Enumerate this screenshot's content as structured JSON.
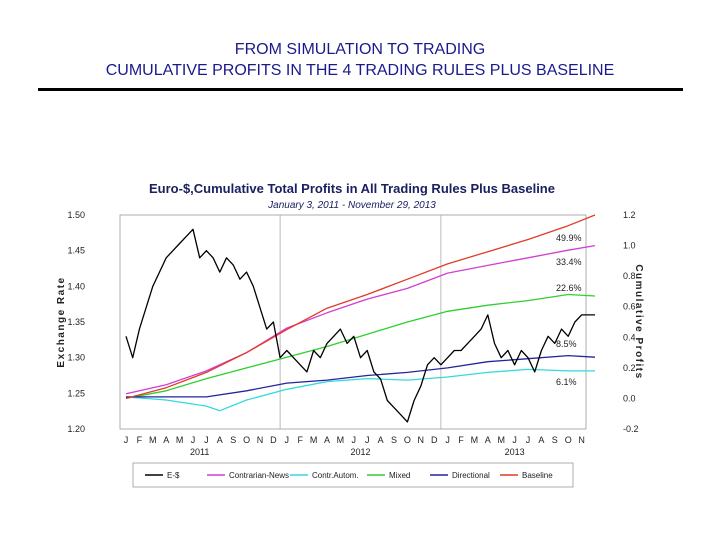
{
  "slide": {
    "title_line1": "FROM SIMULATION TO TRADING",
    "title_line2": "CUMULATIVE PROFITS IN THE 4 TRADING RULES PLUS BASELINE"
  },
  "chart_data": {
    "type": "line",
    "title": "Euro-$,Cumulative Total Profits in All Trading Rules Plus Baseline",
    "subtitle": "January 3, 2011 - November 29, 2013",
    "ylabel_left": "Exchange Rate",
    "ylabel_right": "Cumulative Profits",
    "ylim_left": [
      1.2,
      1.5
    ],
    "ylim_right": [
      -0.2,
      1.2
    ],
    "yticks_left": [
      "1.50",
      "1.45",
      "1.40",
      "1.35",
      "1.30",
      "1.25",
      "1.20"
    ],
    "yticks_right": [
      "1.2",
      "1.0",
      "0.8",
      "0.6",
      "0.4",
      "0.2",
      "0.0",
      "-0.2"
    ],
    "x_month_labels": [
      "J",
      "F",
      "M",
      "A",
      "M",
      "J",
      "J",
      "A",
      "S",
      "O",
      "N",
      "D",
      "J",
      "F",
      "M",
      "A",
      "M",
      "J",
      "J",
      "A",
      "S",
      "O",
      "N",
      "D",
      "J",
      "F",
      "M",
      "A",
      "M",
      "J",
      "J",
      "A",
      "S",
      "O",
      "N"
    ],
    "x_year_labels": [
      "2011",
      "2012",
      "2013"
    ],
    "grid": "vertical lines at year boundaries",
    "legend_position": "bottom",
    "annotations": [
      "49.9%",
      "33.4%",
      "22.6%",
      "8.5%",
      "6.1%"
    ],
    "series": [
      {
        "name": "E-$",
        "axis": "left",
        "color": "#000000",
        "x": [
          0,
          0.5,
          1,
          1.5,
          2,
          2.5,
          3,
          3.5,
          4,
          4.5,
          5,
          5.5,
          6,
          6.5,
          7,
          7.5,
          8,
          8.5,
          9,
          9.5,
          10,
          10.5,
          11,
          11.5,
          12,
          12.5,
          13,
          13.5,
          14,
          14.5,
          15,
          15.5,
          16,
          16.5,
          17,
          17.5,
          18,
          18.5,
          19,
          19.5,
          20,
          20.5,
          21,
          21.5,
          22,
          22.5,
          23,
          23.5,
          24,
          24.5,
          25,
          25.5,
          26,
          26.5,
          27,
          27.5,
          28,
          28.5,
          29,
          29.5,
          30,
          30.5,
          31,
          31.5,
          32,
          32.5,
          33,
          33.5,
          34,
          34.5,
          35
        ],
        "values": [
          1.33,
          1.3,
          1.34,
          1.37,
          1.4,
          1.42,
          1.44,
          1.45,
          1.46,
          1.47,
          1.48,
          1.44,
          1.45,
          1.44,
          1.42,
          1.44,
          1.43,
          1.41,
          1.42,
          1.4,
          1.37,
          1.34,
          1.35,
          1.3,
          1.31,
          1.3,
          1.29,
          1.28,
          1.31,
          1.3,
          1.32,
          1.33,
          1.34,
          1.32,
          1.33,
          1.3,
          1.31,
          1.28,
          1.27,
          1.24,
          1.23,
          1.22,
          1.21,
          1.24,
          1.26,
          1.29,
          1.3,
          1.29,
          1.3,
          1.31,
          1.31,
          1.32,
          1.33,
          1.34,
          1.36,
          1.32,
          1.3,
          1.31,
          1.29,
          1.31,
          1.3,
          1.28,
          1.31,
          1.33,
          1.32,
          1.34,
          1.33,
          1.35,
          1.36,
          1.36,
          1.36
        ]
      },
      {
        "name": "Contrarian-News",
        "axis": "right",
        "color": "#d23ed2",
        "x": [
          0,
          3,
          6,
          9,
          12,
          15,
          18,
          21,
          24,
          27,
          30,
          33,
          35
        ],
        "values": [
          0.03,
          0.09,
          0.18,
          0.3,
          0.46,
          0.56,
          0.65,
          0.72,
          0.82,
          0.87,
          0.92,
          0.97,
          1.0
        ]
      },
      {
        "name": "Contr.Autom.",
        "axis": "right",
        "color": "#33d9dd",
        "x": [
          0,
          3,
          6,
          7,
          9,
          12,
          15,
          18,
          21,
          24,
          27,
          30,
          33,
          35
        ],
        "values": [
          0.01,
          -0.01,
          -0.05,
          -0.08,
          -0.01,
          0.06,
          0.11,
          0.13,
          0.12,
          0.14,
          0.17,
          0.19,
          0.18,
          0.18
        ]
      },
      {
        "name": "Mixed",
        "axis": "right",
        "color": "#2fcf2f",
        "x": [
          0,
          3,
          6,
          9,
          12,
          15,
          18,
          21,
          24,
          27,
          30,
          33,
          35
        ],
        "values": [
          0.0,
          0.05,
          0.13,
          0.2,
          0.27,
          0.34,
          0.42,
          0.5,
          0.57,
          0.61,
          0.64,
          0.68,
          0.67
        ]
      },
      {
        "name": "Directional",
        "axis": "right",
        "color": "#26249c",
        "x": [
          0,
          3,
          6,
          9,
          12,
          15,
          18,
          21,
          24,
          27,
          30,
          33,
          35
        ],
        "values": [
          0.01,
          0.01,
          0.01,
          0.05,
          0.1,
          0.12,
          0.15,
          0.17,
          0.2,
          0.24,
          0.26,
          0.28,
          0.27
        ]
      },
      {
        "name": "Baseline",
        "axis": "right",
        "color": "#e23a26",
        "x": [
          0,
          3,
          6,
          9,
          12,
          15,
          18,
          21,
          24,
          27,
          30,
          33,
          35
        ],
        "values": [
          0.0,
          0.07,
          0.17,
          0.3,
          0.45,
          0.59,
          0.68,
          0.78,
          0.88,
          0.96,
          1.04,
          1.13,
          1.2
        ]
      }
    ]
  }
}
